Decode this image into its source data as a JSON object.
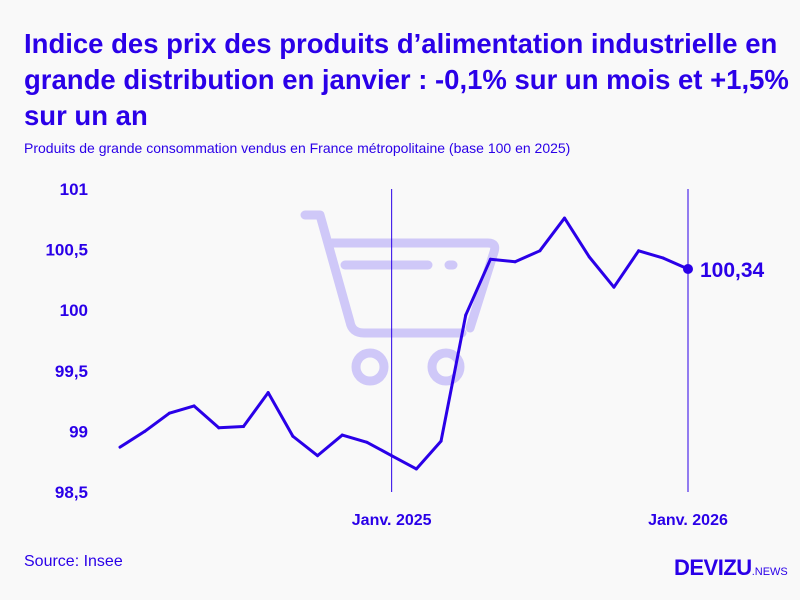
{
  "title": "Indice des prix des produits d’alimentation industrielle en grande distribution en janvier : -0,1% sur un mois et +1,5% sur un an",
  "subtitle": "Produits de grande consommation vendus en France métropolitaine (base 100 en 2025)",
  "source": "Source: Insee",
  "logo": {
    "main": "DEVIZU",
    "suffix": ".NEWS"
  },
  "colors": {
    "accent": "#2a00e8",
    "watermark": "#cfc8f8",
    "background": "#f9f9f9"
  },
  "watermark_icon": "shopping-cart-icon",
  "chart_data": {
    "type": "line",
    "x": [
      "2024-02",
      "2024-03",
      "2024-04",
      "2024-05",
      "2024-06",
      "2024-07",
      "2024-08",
      "2024-09",
      "2024-10",
      "2024-11",
      "2024-12",
      "2025-01",
      "2025-02",
      "2025-03",
      "2025-04",
      "2025-05",
      "2025-06",
      "2025-07",
      "2025-08",
      "2025-09",
      "2025-10",
      "2025-11",
      "2025-12",
      "2026-01"
    ],
    "values": [
      98.87,
      99.0,
      99.15,
      99.21,
      99.03,
      99.04,
      99.32,
      98.96,
      98.8,
      98.97,
      98.91,
      98.8,
      98.69,
      98.92,
      99.96,
      100.42,
      100.4,
      100.49,
      100.76,
      100.44,
      100.19,
      100.49,
      100.43,
      100.34
    ],
    "ylim": [
      98.5,
      101
    ],
    "yticks": [
      98.5,
      99,
      99.5,
      100,
      100.5,
      101
    ],
    "ytick_labels": [
      "98,5",
      "99",
      "99,5",
      "100",
      "100,5",
      "101"
    ],
    "xtick_labels": [
      {
        "at": "2025-01",
        "label": "Janv. 2025"
      },
      {
        "at": "2026-01",
        "label": "Janv. 2026"
      }
    ],
    "last_value_label": "100,34",
    "grid": false,
    "legend": "none"
  }
}
